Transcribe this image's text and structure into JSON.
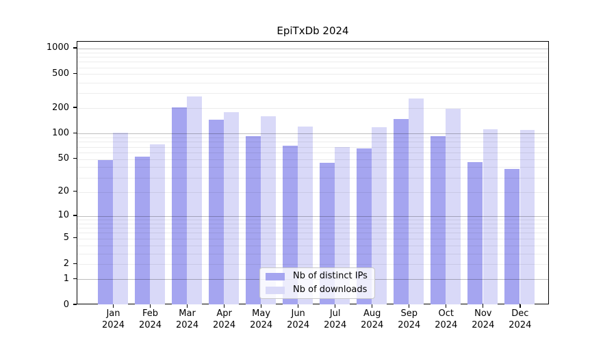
{
  "title": "EpiTxDb 2024",
  "chart_data": {
    "type": "bar",
    "title": "EpiTxDb 2024",
    "categories": [
      "Jan",
      "Feb",
      "Mar",
      "Apr",
      "May",
      "Jun",
      "Jul",
      "Aug",
      "Sep",
      "Oct",
      "Nov",
      "Dec"
    ],
    "year_label": "2024",
    "series": [
      {
        "name": "Nb of distinct IPs",
        "color": "#a5a5f0",
        "values": [
          49,
          53,
          205,
          145,
          93,
          72,
          45,
          67,
          148,
          93,
          46,
          38
        ]
      },
      {
        "name": "Nb of downloads",
        "color": "#d9d9f8",
        "values": [
          103,
          75,
          272,
          180,
          159,
          121,
          69,
          120,
          261,
          196,
          112,
          110
        ]
      }
    ],
    "xlabel": "",
    "ylabel": "",
    "y_axis": {
      "scale": "log1p",
      "ticks": [
        0,
        1,
        2,
        5,
        10,
        20,
        50,
        100,
        200,
        500,
        1000
      ],
      "ylim": [
        0,
        1200
      ]
    },
    "grid": "horizontal, minor + major (powers of 10) drawn over bars",
    "legend_position": "inside-bottom-center"
  }
}
